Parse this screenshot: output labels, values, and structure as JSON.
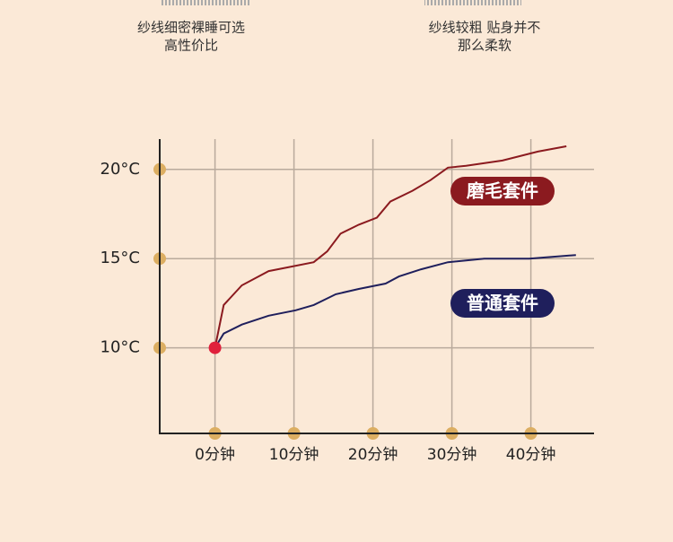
{
  "captions": [
    {
      "lines": [
        "纱线细密裸睡可选",
        "高性价比"
      ]
    },
    {
      "lines": [
        "纱线较粗 贴身并不",
        "那么柔软"
      ]
    }
  ],
  "chart_data": {
    "type": "line",
    "xlim": [
      -7,
      48
    ],
    "ylim": [
      5.2,
      21.7
    ],
    "xticks": [
      {
        "value": 0,
        "label": "0分钟"
      },
      {
        "value": 10,
        "label": "10分钟"
      },
      {
        "value": 20,
        "label": "20分钟"
      },
      {
        "value": 30,
        "label": "30分钟"
      },
      {
        "value": 40,
        "label": "40分钟"
      }
    ],
    "yticks": [
      {
        "value": 10,
        "label": "10°C"
      },
      {
        "value": 15,
        "label": "15°C"
      },
      {
        "value": 20,
        "label": "20°C"
      }
    ],
    "grid": true,
    "series": [
      {
        "name": "磨毛套件",
        "color": "#8b1a1f",
        "x": [
          0,
          1.1,
          3.4,
          6.8,
          9.1,
          12.5,
          14.2,
          15.9,
          18.2,
          20.5,
          22.2,
          25,
          27.3,
          29.5,
          31.8,
          36.4,
          40.9,
          44.5
        ],
        "values": [
          10,
          12.4,
          13.5,
          14.3,
          14.5,
          14.8,
          15.4,
          16.4,
          16.9,
          17.3,
          18.2,
          18.8,
          19.4,
          20.1,
          20.2,
          20.5,
          21.0,
          21.3
        ]
      },
      {
        "name": "普通套件",
        "color": "#1f1f5c",
        "x": [
          0,
          1.1,
          3.4,
          6.8,
          10.2,
          12.5,
          15.3,
          18.2,
          21.6,
          23.3,
          26.1,
          29.5,
          34.1,
          39.8,
          45.7
        ],
        "values": [
          10,
          10.8,
          11.3,
          11.8,
          12.1,
          12.4,
          13.0,
          13.3,
          13.6,
          14.0,
          14.4,
          14.8,
          15.0,
          15.0,
          15.2
        ]
      }
    ]
  }
}
